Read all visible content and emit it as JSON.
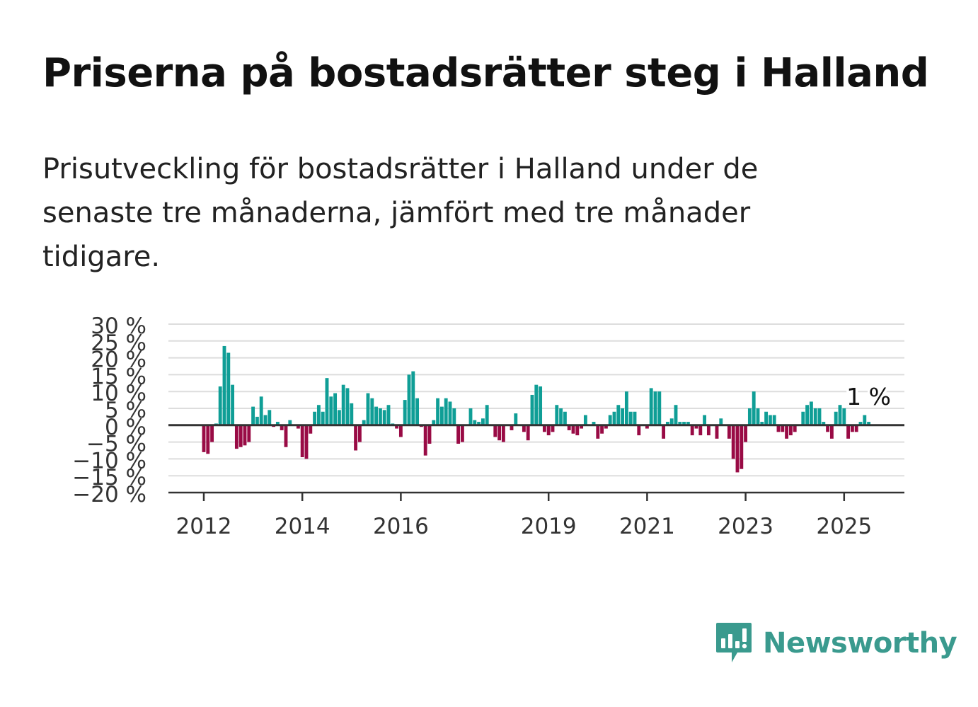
{
  "title": "Priserna på bostadsrätter steg i Halland",
  "subtitle": "Prisutveckling för bostadsrätter i Halland under de senaste tre månaderna, jämfört med tre månader tidigare.",
  "brand": {
    "name": "Newsworthy",
    "icon": "newsworthy-logo-icon",
    "color": "#3a9a8e"
  },
  "chart_data": {
    "type": "bar",
    "xlabel": "",
    "ylabel": "",
    "ylim": [
      -20,
      30
    ],
    "y_ticks": [
      {
        "value": 30,
        "label": "30 %"
      },
      {
        "value": 25,
        "label": "25 %"
      },
      {
        "value": 20,
        "label": "20 %"
      },
      {
        "value": 15,
        "label": "15 %"
      },
      {
        "value": 10,
        "label": "10 %"
      },
      {
        "value": 5,
        "label": "5 %"
      },
      {
        "value": 0,
        "label": "0 %"
      },
      {
        "value": -5,
        "label": "−5 %"
      },
      {
        "value": -10,
        "label": "−10 %"
      },
      {
        "value": -15,
        "label": "−15 %"
      },
      {
        "value": -20,
        "label": "−20 %"
      }
    ],
    "x_ticks": [
      {
        "value": 2012,
        "label": "2012"
      },
      {
        "value": 2014,
        "label": "2014"
      },
      {
        "value": 2016,
        "label": "2016"
      },
      {
        "value": 2019,
        "label": "2019"
      },
      {
        "value": 2021,
        "label": "2021"
      },
      {
        "value": 2023,
        "label": "2023"
      },
      {
        "value": 2025,
        "label": "2025"
      }
    ],
    "start": "2012-01",
    "frequency": "monthly",
    "grid": true,
    "colors": {
      "positive": "#0f9e96",
      "negative": "#990b45",
      "grid": "#dddddd",
      "zero": "#333333"
    },
    "annotation": {
      "label": "1 %",
      "value": 1
    },
    "values": [
      -8,
      -8.5,
      -5,
      0.5,
      11.5,
      23.5,
      21.5,
      12,
      -7,
      -6.5,
      -6,
      -5,
      5.5,
      2.5,
      8.5,
      3,
      4.5,
      -0.5,
      1,
      -1.5,
      -6.5,
      1.5,
      0,
      -1,
      -9.5,
      -10,
      -2.5,
      4,
      6,
      4,
      14,
      8.5,
      9.5,
      4.5,
      12,
      11,
      6.5,
      -7.5,
      -5,
      1.5,
      9.5,
      8,
      5.5,
      5,
      4.5,
      6,
      0.5,
      -1,
      -3.5,
      7.5,
      15,
      16,
      8,
      -0.5,
      -9,
      -5.5,
      1.5,
      8,
      5.5,
      8,
      7,
      5,
      -5.5,
      -5,
      0,
      5,
      1.5,
      1,
      2,
      6,
      0,
      -3.5,
      -4.5,
      -5,
      0,
      -1.5,
      3.5,
      0,
      -2,
      -4.5,
      9,
      12,
      11.5,
      -2,
      -3,
      -2,
      6,
      5,
      4,
      -1.5,
      -2.5,
      -3,
      -1,
      3,
      0,
      1,
      -4,
      -2.5,
      -1,
      3,
      4,
      6,
      5,
      10,
      4,
      4,
      -3,
      0,
      -1,
      11,
      10,
      10,
      -4,
      1,
      2,
      6,
      1,
      1,
      1,
      -3,
      -1,
      -3,
      3,
      -3,
      0,
      -4,
      2,
      0,
      -4,
      -10,
      -14,
      -13,
      -5,
      5,
      10,
      5,
      1,
      4,
      3,
      3,
      -2,
      -2,
      -4,
      -3,
      -2,
      0,
      4,
      6,
      7,
      5,
      5,
      1,
      -2,
      -4,
      4,
      6,
      5,
      -4,
      -2,
      -2,
      1,
      3,
      1
    ]
  }
}
